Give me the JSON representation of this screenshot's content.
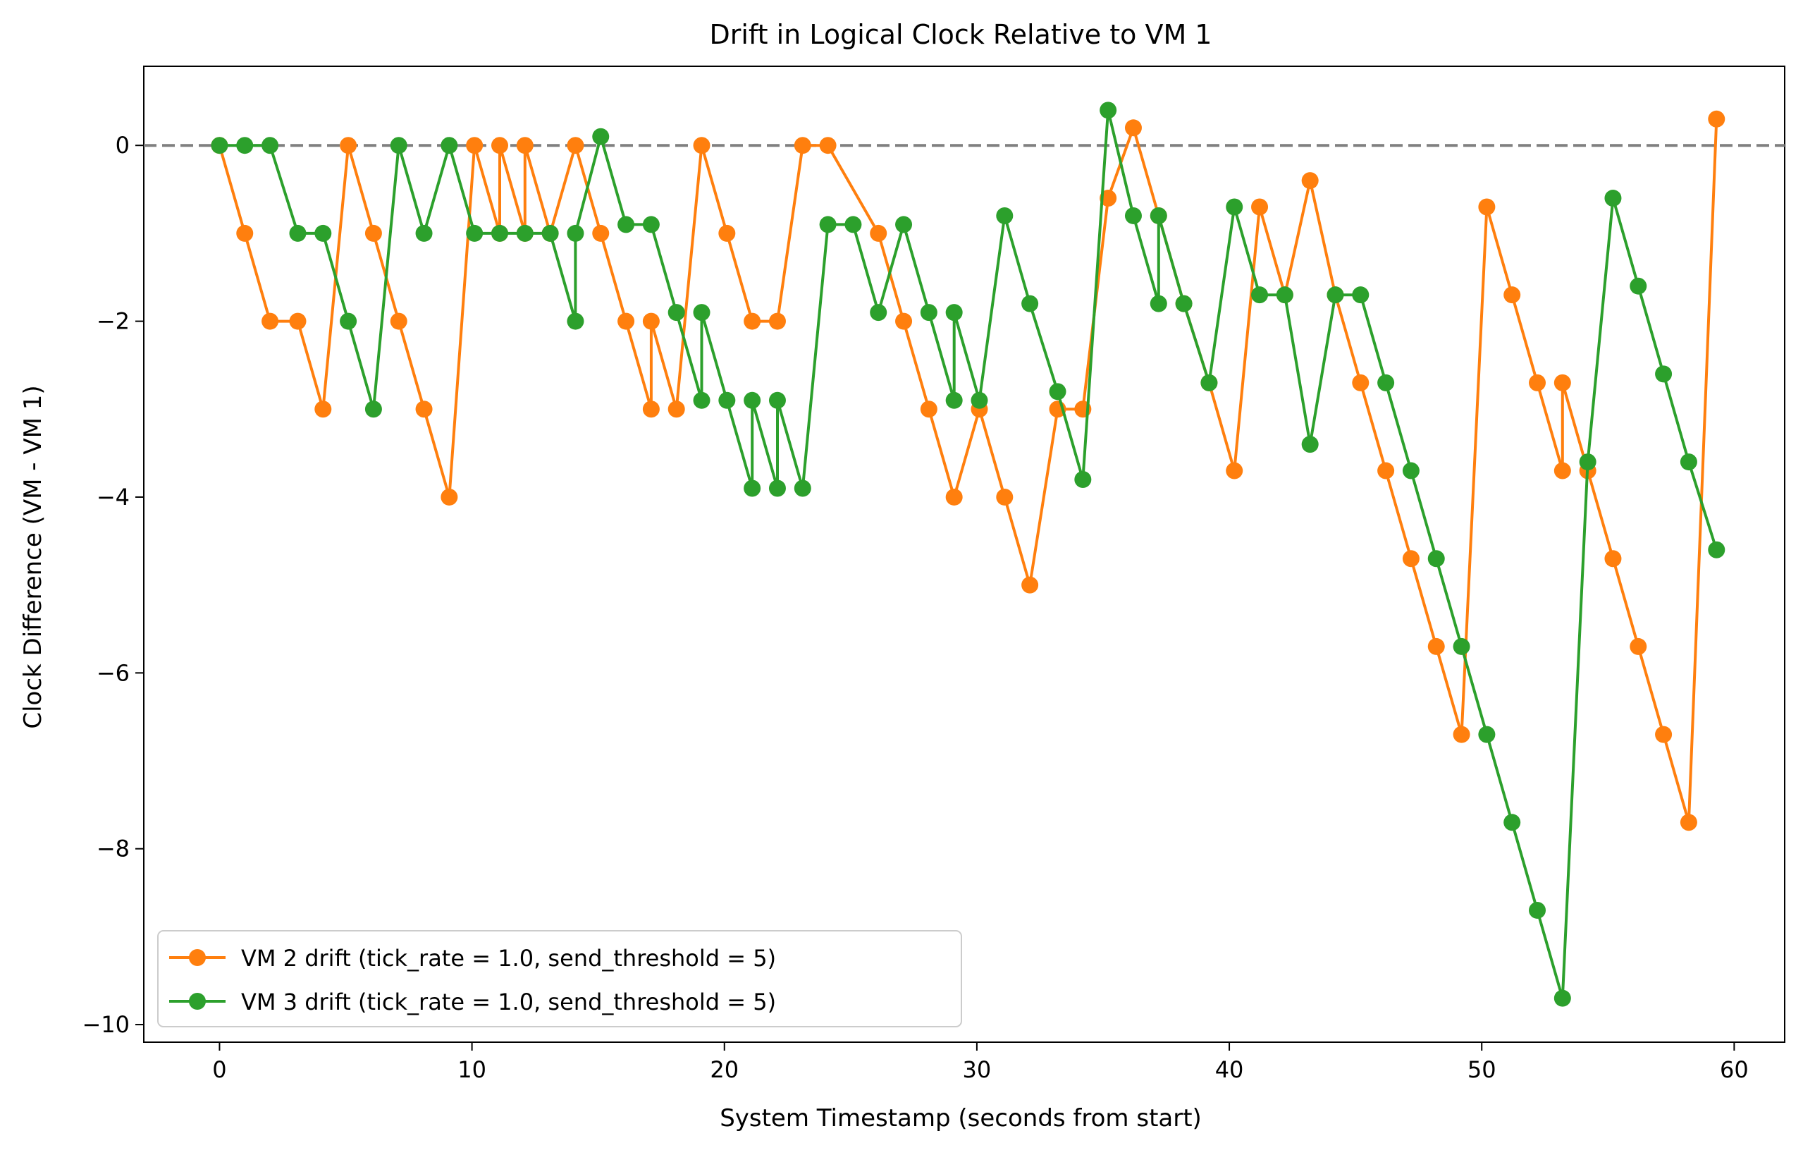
{
  "chart_data": {
    "type": "line",
    "title": "Drift in Logical Clock Relative to VM 1",
    "xlabel": "System Timestamp (seconds from start)",
    "ylabel": "Clock Difference (VM - VM 1)",
    "xlim": [
      -3,
      62
    ],
    "ylim": [
      -10.2,
      0.9
    ],
    "xticks": [
      0,
      10,
      20,
      30,
      40,
      50,
      60
    ],
    "yticks": [
      0,
      -2,
      -4,
      -6,
      -8,
      -10
    ],
    "xtick_labels": [
      "0",
      "10",
      "20",
      "30",
      "40",
      "50",
      "60"
    ],
    "ytick_labels": [
      "0",
      "−2",
      "−4",
      "−6",
      "−8",
      "−10"
    ],
    "reference_line": {
      "y": 0,
      "style": "dashed",
      "color": "#808080"
    },
    "grid": false,
    "legend_position": "bottom-left",
    "series": [
      {
        "name": "VM 2 drift (tick_rate = 1.0, send_threshold = 5)",
        "color": "#ff7f0e",
        "points": [
          [
            0.0,
            0
          ],
          [
            1.0,
            -1
          ],
          [
            2.0,
            -2
          ],
          [
            3.1,
            -2
          ],
          [
            4.1,
            -3
          ],
          [
            5.1,
            0
          ],
          [
            6.1,
            -1
          ],
          [
            7.1,
            -2
          ],
          [
            8.1,
            -3
          ],
          [
            9.1,
            -4
          ],
          [
            10.1,
            0
          ],
          [
            11.1,
            -1
          ],
          [
            11.1,
            0
          ],
          [
            12.1,
            -1
          ],
          [
            12.1,
            0
          ],
          [
            13.1,
            -1
          ],
          [
            14.1,
            0
          ],
          [
            15.1,
            -1
          ],
          [
            16.1,
            -2
          ],
          [
            17.1,
            -3
          ],
          [
            17.1,
            -2
          ],
          [
            18.1,
            -3
          ],
          [
            19.1,
            0
          ],
          [
            20.1,
            -1
          ],
          [
            21.1,
            -2
          ],
          [
            22.1,
            -2
          ],
          [
            23.1,
            0
          ],
          [
            24.1,
            0
          ],
          [
            26.1,
            -1
          ],
          [
            27.1,
            -2
          ],
          [
            28.1,
            -3
          ],
          [
            29.1,
            -4
          ],
          [
            30.1,
            -3
          ],
          [
            31.1,
            -4
          ],
          [
            32.1,
            -5
          ],
          [
            33.2,
            -3
          ],
          [
            34.2,
            -3
          ],
          [
            35.2,
            -0.6
          ],
          [
            36.2,
            0.2
          ],
          [
            37.2,
            -0.8
          ],
          [
            38.2,
            -1.8
          ],
          [
            39.2,
            -2.7
          ],
          [
            40.2,
            -3.7
          ],
          [
            41.2,
            -0.7
          ],
          [
            42.2,
            -1.7
          ],
          [
            43.2,
            -0.4
          ],
          [
            44.2,
            -1.7
          ],
          [
            45.2,
            -2.7
          ],
          [
            46.2,
            -3.7
          ],
          [
            47.2,
            -4.7
          ],
          [
            48.2,
            -5.7
          ],
          [
            49.2,
            -6.7
          ],
          [
            50.2,
            -0.7
          ],
          [
            51.2,
            -1.7
          ],
          [
            52.2,
            -2.7
          ],
          [
            53.2,
            -3.7
          ],
          [
            53.2,
            -2.7
          ],
          [
            54.2,
            -3.7
          ],
          [
            55.2,
            -4.7
          ],
          [
            56.2,
            -5.7
          ],
          [
            57.2,
            -6.7
          ],
          [
            58.2,
            -7.7
          ],
          [
            59.3,
            0.3
          ]
        ]
      },
      {
        "name": "VM 3 drift (tick_rate = 1.0, send_threshold = 5)",
        "color": "#2ca02c",
        "points": [
          [
            0.0,
            0
          ],
          [
            1.0,
            0
          ],
          [
            2.0,
            0
          ],
          [
            3.1,
            -1
          ],
          [
            4.1,
            -1
          ],
          [
            5.1,
            -2
          ],
          [
            6.1,
            -3
          ],
          [
            7.1,
            0
          ],
          [
            8.1,
            -1
          ],
          [
            9.1,
            0
          ],
          [
            10.1,
            -1
          ],
          [
            11.1,
            -1
          ],
          [
            12.1,
            -1
          ],
          [
            13.1,
            -1
          ],
          [
            14.1,
            -2
          ],
          [
            14.1,
            -1
          ],
          [
            15.1,
            0.1
          ],
          [
            16.1,
            -0.9
          ],
          [
            17.1,
            -0.9
          ],
          [
            18.1,
            -1.9
          ],
          [
            19.1,
            -2.9
          ],
          [
            19.1,
            -1.9
          ],
          [
            20.1,
            -2.9
          ],
          [
            21.1,
            -3.9
          ],
          [
            21.1,
            -2.9
          ],
          [
            22.1,
            -3.9
          ],
          [
            22.1,
            -2.9
          ],
          [
            23.1,
            -3.9
          ],
          [
            24.1,
            -0.9
          ],
          [
            25.1,
            -0.9
          ],
          [
            26.1,
            -1.9
          ],
          [
            27.1,
            -0.9
          ],
          [
            28.1,
            -1.9
          ],
          [
            29.1,
            -2.9
          ],
          [
            29.1,
            -1.9
          ],
          [
            30.1,
            -2.9
          ],
          [
            31.1,
            -0.8
          ],
          [
            32.1,
            -1.8
          ],
          [
            33.2,
            -2.8
          ],
          [
            34.2,
            -3.8
          ],
          [
            35.2,
            0.4
          ],
          [
            36.2,
            -0.8
          ],
          [
            37.2,
            -1.8
          ],
          [
            37.2,
            -0.8
          ],
          [
            38.2,
            -1.8
          ],
          [
            39.2,
            -2.7
          ],
          [
            40.2,
            -0.7
          ],
          [
            41.2,
            -1.7
          ],
          [
            42.2,
            -1.7
          ],
          [
            43.2,
            -3.4
          ],
          [
            44.2,
            -1.7
          ],
          [
            45.2,
            -1.7
          ],
          [
            46.2,
            -2.7
          ],
          [
            47.2,
            -3.7
          ],
          [
            48.2,
            -4.7
          ],
          [
            49.2,
            -5.7
          ],
          [
            50.2,
            -6.7
          ],
          [
            51.2,
            -7.7
          ],
          [
            52.2,
            -8.7
          ],
          [
            53.2,
            -9.7
          ],
          [
            54.2,
            -3.6
          ],
          [
            55.2,
            -0.6
          ],
          [
            56.2,
            -1.6
          ],
          [
            57.2,
            -2.6
          ],
          [
            58.2,
            -3.6
          ],
          [
            59.3,
            -4.6
          ]
        ]
      }
    ]
  }
}
